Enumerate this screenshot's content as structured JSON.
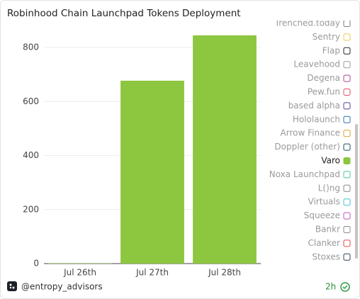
{
  "chart_data": {
    "type": "bar",
    "title": "Robinhood Chain Launchpad Tokens Deployment",
    "categories": [
      "Jul 26th",
      "Jul 27th",
      "Jul 28th"
    ],
    "series": [
      {
        "name": "Trenched.today",
        "color": "#7a7a7a",
        "visible": false
      },
      {
        "name": "Sentry",
        "color": "#f2c94c",
        "visible": false
      },
      {
        "name": "Flap",
        "color": "#222222",
        "visible": false
      },
      {
        "name": "Leavehood",
        "color": "#999999",
        "visible": false
      },
      {
        "name": "Degena",
        "color": "#b0408a",
        "visible": false
      },
      {
        "name": "Pew.fun",
        "color": "#e0506a",
        "visible": false
      },
      {
        "name": "based alpha",
        "color": "#5a3c9a",
        "visible": false
      },
      {
        "name": "Hololaunch",
        "color": "#2f6fb5",
        "visible": false
      },
      {
        "name": "Arrow Finance",
        "color": "#e0a030",
        "visible": false
      },
      {
        "name": "Doppler (other)",
        "color": "#1f4f5f",
        "visible": false
      },
      {
        "name": "Varo",
        "color": "#8dc63f",
        "visible": true,
        "values": [
          1,
          677,
          845
        ]
      },
      {
        "name": "Noxa Launchpad",
        "color": "#4cbf9f",
        "visible": false
      },
      {
        "name": "L()ng",
        "color": "#888888",
        "visible": false
      },
      {
        "name": "Virtuals",
        "color": "#40c0d0",
        "visible": false
      },
      {
        "name": "Squeeze",
        "color": "#c050c0",
        "visible": false
      },
      {
        "name": "Bankr",
        "color": "#888888",
        "visible": false
      },
      {
        "name": "Clanker",
        "color": "#e04848",
        "visible": false
      },
      {
        "name": "Stoxes",
        "color": "#334455",
        "visible": false
      }
    ],
    "ylim": [
      0,
      880
    ],
    "yticks": [
      0,
      200,
      400,
      600,
      800
    ],
    "grid": true
  },
  "footer": {
    "handle": "@entropy_advisors",
    "age": "2h"
  }
}
